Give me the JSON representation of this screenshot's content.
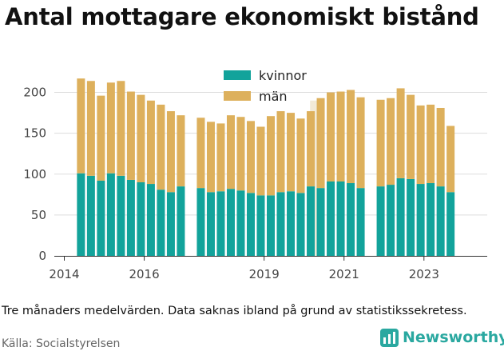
{
  "title": "Antal mottagare ekonomiskt bistånd",
  "note": "Tre månaders medelvärden. Data saknas ibland på grund av statistikssekretess.",
  "source": "Källa: Socialstyrelsen",
  "brand": "Newsworthy",
  "colors": {
    "kvinnor": "#12a39b",
    "man": "#ddb05c",
    "grid": "#dddddd",
    "faint_bar": "#f2ead8",
    "brand": "#2aa8a0"
  },
  "chart_data": {
    "type": "bar",
    "stacked": true,
    "x_ticks": [
      "2014",
      "2016",
      "2019",
      "2021",
      "2023"
    ],
    "y_ticks": [
      "0",
      "50",
      "100",
      "150",
      "200"
    ],
    "ylim": [
      0,
      225
    ],
    "xlim": [
      "2013-10",
      "2024-08"
    ],
    "grid": "horizontal",
    "legend_position": "top-center",
    "series": [
      {
        "name": "kvinnor",
        "values": [
          101,
          98,
          92,
          101,
          98,
          93,
          90,
          88,
          81,
          78,
          85,
          null,
          83,
          78,
          79,
          82,
          80,
          77,
          74,
          74,
          78,
          79,
          77,
          85,
          83,
          91,
          91,
          89,
          83,
          null,
          85,
          87,
          95,
          94,
          88,
          89,
          85,
          78
        ]
      },
      {
        "name": "män",
        "values": [
          116,
          116,
          104,
          111,
          116,
          108,
          107,
          102,
          104,
          99,
          87,
          null,
          86,
          86,
          83,
          90,
          90,
          88,
          84,
          97,
          99,
          96,
          91,
          92,
          110,
          109,
          110,
          114,
          111,
          null,
          106,
          106,
          110,
          103,
          96,
          96,
          96,
          81
        ]
      }
    ],
    "x_dates": [
      "2014-06",
      "2014-09",
      "2014-12",
      "2015-03",
      "2015-06",
      "2015-09",
      "2015-12",
      "2016-03",
      "2016-06",
      "2016-09",
      "2016-12",
      "2017-03",
      "2017-06",
      "2017-09",
      "2017-12",
      "2018-03",
      "2018-06",
      "2018-09",
      "2018-12",
      "2019-03",
      "2019-06",
      "2019-09",
      "2019-12",
      "2020-03",
      "2020-06",
      "2020-09",
      "2020-12",
      "2021-03",
      "2021-06",
      "2021-09",
      "2021-12",
      "2022-03",
      "2022-06",
      "2022-09",
      "2022-12",
      "2023-03",
      "2023-06",
      "2023-09"
    ],
    "faint_bar": {
      "x": "2020-04",
      "value": 190
    }
  }
}
